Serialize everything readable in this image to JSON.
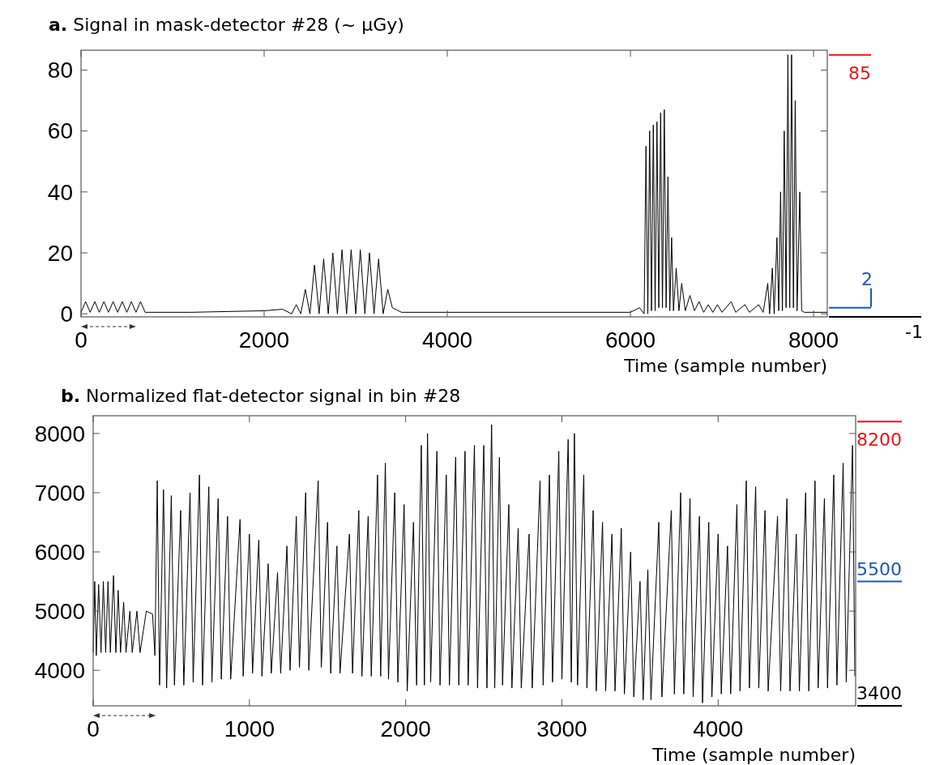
{
  "chart_data": [
    {
      "type": "line",
      "title": "a. Signal in mask-detector #28 (~ µGy)",
      "xlabel": "Time (sample number)",
      "xlim": [
        0,
        8150
      ],
      "xticks": [
        0,
        2000,
        4000,
        6000,
        8000
      ],
      "ylim": [
        -1,
        86.5
      ],
      "yticks": [
        0,
        20,
        40,
        60,
        80
      ],
      "grid": false,
      "line_style": "solid",
      "series": [
        {
          "color": "#000000",
          "x": [
            0,
            50,
            100,
            150,
            200,
            250,
            300,
            350,
            400,
            450,
            500,
            550,
            600,
            650,
            700,
            1200,
            2000,
            2200,
            2300,
            2350,
            2400,
            2450,
            2500,
            2550,
            2600,
            2650,
            2700,
            2750,
            2800,
            2850,
            2900,
            2950,
            3000,
            3050,
            3100,
            3150,
            3200,
            3250,
            3300,
            3350,
            3400,
            3500,
            6000,
            6100,
            6150,
            6170,
            6190,
            6210,
            6230,
            6250,
            6270,
            6290,
            6310,
            6330,
            6350,
            6370,
            6390,
            6410,
            6430,
            6450,
            6470,
            6500,
            6530,
            6560,
            6600,
            6650,
            6700,
            6750,
            6800,
            6850,
            6900,
            6950,
            7000,
            7100,
            7150,
            7250,
            7300,
            7400,
            7450,
            7500,
            7520,
            7550,
            7570,
            7600,
            7620,
            7640,
            7660,
            7680,
            7700,
            7720,
            7740,
            7760,
            7780,
            7800,
            7820,
            7850,
            7870,
            7900,
            8150
          ],
          "values": [
            0.5,
            4,
            0.5,
            4,
            0.5,
            4,
            0.5,
            4,
            0.5,
            4,
            0.5,
            4,
            0.5,
            4,
            0.5,
            0.5,
            1,
            1.5,
            0,
            3,
            0,
            8,
            0,
            16,
            0,
            18,
            0,
            20,
            0,
            21,
            0,
            21,
            0,
            21,
            0,
            20,
            0,
            18,
            0,
            8,
            2,
            0.5,
            0.5,
            2,
            0,
            55,
            0,
            60,
            1,
            62,
            1,
            63,
            2,
            66,
            2,
            67,
            2,
            45,
            1,
            25,
            1,
            15,
            1,
            10,
            1,
            6,
            1,
            4,
            0.5,
            3,
            0.5,
            3,
            0.5,
            4,
            0.5,
            3,
            0.5,
            3,
            0.5,
            10,
            0,
            15,
            0,
            25,
            1,
            40,
            1,
            60,
            2,
            85,
            2,
            85,
            2,
            70,
            1,
            40,
            1,
            0.5,
            0.5
          ]
        }
      ],
      "ref_lines": [
        {
          "axis": "y",
          "value": 85,
          "label": "85",
          "color": "#e8141a"
        },
        {
          "axis": "y",
          "value": 2,
          "label": "2",
          "color": "#1c5aa8"
        },
        {
          "axis": "y",
          "value": -1,
          "label": "-1",
          "color": "#000000"
        }
      ]
    },
    {
      "type": "line",
      "title": "b. Normalized flat-detector signal in bin #28",
      "xlabel": "Time (sample number)",
      "xlim": [
        0,
        4880
      ],
      "xticks": [
        0,
        1000,
        2000,
        3000,
        4000
      ],
      "ylim": [
        3400,
        8300
      ],
      "yticks": [
        4000,
        5000,
        6000,
        7000,
        8000
      ],
      "grid": false,
      "line_style": "solid",
      "series": [
        {
          "color": "#000000",
          "x": [
            0,
            10,
            20,
            35,
            50,
            65,
            80,
            95,
            110,
            130,
            145,
            160,
            175,
            195,
            210,
            235,
            250,
            280,
            300,
            340,
            380,
            395,
            410,
            425,
            450,
            470,
            500,
            520,
            560,
            580,
            620,
            640,
            680,
            700,
            740,
            760,
            800,
            820,
            860,
            880,
            940,
            960,
            1000,
            1020,
            1060,
            1080,
            1120,
            1140,
            1180,
            1200,
            1240,
            1260,
            1300,
            1320,
            1360,
            1380,
            1440,
            1460,
            1500,
            1520,
            1560,
            1580,
            1640,
            1660,
            1700,
            1720,
            1760,
            1780,
            1820,
            1840,
            1870,
            1890,
            1930,
            1950,
            1990,
            2010,
            2050,
            2070,
            2100,
            2120,
            2140,
            2160,
            2200,
            2220,
            2260,
            2280,
            2320,
            2340,
            2380,
            2400,
            2440,
            2460,
            2500,
            2520,
            2550,
            2570,
            2600,
            2620,
            2660,
            2680,
            2720,
            2740,
            2790,
            2810,
            2860,
            2880,
            2920,
            2940,
            2980,
            3000,
            3040,
            3060,
            3080,
            3100,
            3140,
            3160,
            3200,
            3220,
            3260,
            3280,
            3320,
            3340,
            3380,
            3400,
            3440,
            3460,
            3500,
            3520,
            3550,
            3570,
            3620,
            3640,
            3700,
            3720,
            3760,
            3780,
            3820,
            3840,
            3880,
            3900,
            3940,
            3960,
            4000,
            4020,
            4060,
            4080,
            4120,
            4140,
            4180,
            4200,
            4240,
            4260,
            4300,
            4320,
            4380,
            4400,
            4440,
            4460,
            4500,
            4520,
            4560,
            4580,
            4620,
            4640,
            4680,
            4700,
            4740,
            4760,
            4800,
            4820,
            4860,
            4875
          ],
          "values": [
            4300,
            5500,
            4250,
            5450,
            4300,
            5500,
            4300,
            5500,
            4300,
            5600,
            4300,
            5350,
            4300,
            5150,
            4300,
            5000,
            4300,
            5000,
            4300,
            5000,
            4950,
            4250,
            7200,
            3750,
            7050,
            3700,
            6950,
            3750,
            6700,
            3750,
            7000,
            3800,
            7300,
            3750,
            7100,
            3800,
            6900,
            3850,
            6600,
            3850,
            6550,
            3900,
            6300,
            3950,
            6200,
            3900,
            5800,
            3950,
            5650,
            3950,
            6100,
            4000,
            6600,
            4050,
            7000,
            4000,
            7200,
            4050,
            6500,
            3950,
            6100,
            3950,
            6300,
            3950,
            6700,
            3900,
            6600,
            3900,
            7300,
            3900,
            7500,
            3850,
            7000,
            3800,
            6800,
            3650,
            6500,
            3750,
            7800,
            3750,
            8000,
            3800,
            7700,
            3750,
            7300,
            3750,
            7600,
            3750,
            7700,
            3750,
            7800,
            3700,
            7800,
            3700,
            8150,
            3700,
            7600,
            3750,
            6800,
            3700,
            6400,
            3700,
            6300,
            3700,
            7200,
            3750,
            7300,
            3800,
            7700,
            3850,
            7900,
            3800,
            8000,
            3750,
            7300,
            3700,
            6700,
            3650,
            6500,
            3650,
            6300,
            3650,
            6400,
            3600,
            6000,
            3550,
            5500,
            3500,
            5700,
            3500,
            6500,
            3550,
            6700,
            3600,
            7000,
            3600,
            6900,
            3550,
            6600,
            3450,
            6500,
            3550,
            6300,
            3600,
            6100,
            3600,
            6800,
            3650,
            7200,
            3700,
            7100,
            3700,
            6700,
            3650,
            6600,
            3650,
            6900,
            3650,
            6300,
            3650,
            7000,
            3650,
            7200,
            3700,
            6900,
            3700,
            7300,
            3750,
            7500,
            3800,
            7800,
            3900
          ]
        }
      ],
      "ref_lines": [
        {
          "axis": "y",
          "value": 8200,
          "label": "8200",
          "color": "#e8141a"
        },
        {
          "axis": "y",
          "value": 5500,
          "label": "5500",
          "color": "#1c5aa8"
        },
        {
          "axis": "y",
          "value": 3400,
          "label": "3400",
          "color": "#000000"
        }
      ]
    }
  ]
}
